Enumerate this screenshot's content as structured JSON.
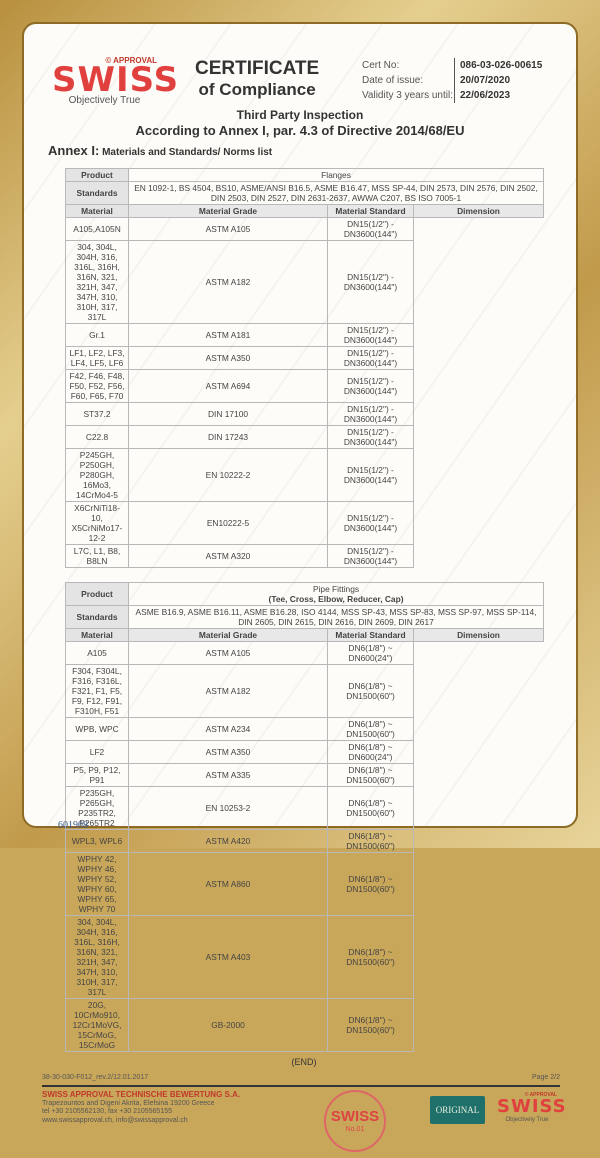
{
  "header": {
    "logo_approval": "© APPROVAL",
    "logo_brand": "SWISS",
    "logo_tagline": "Objectively True",
    "title_1": "CERTIFICATE",
    "title_2": "of Compliance",
    "cert_no_label": "Cert No:",
    "cert_no": "086-03-026-00615",
    "date_label": "Date of issue:",
    "date": "20/07/2020",
    "validity_label": "Validity 3 years until:",
    "validity": "22/06/2023",
    "subtitle_1": "Third Party Inspection",
    "subtitle_2": "According to Annex I, par. 4.3 of Directive 2014/68/EU"
  },
  "annex": {
    "prefix": "Annex I:",
    "text": " Materials and Standards/ Norms list"
  },
  "labels": {
    "product": "Product",
    "standards": "Standards",
    "material": "Material",
    "grade": "Material Grade",
    "standard": "Material Standard",
    "dimension": "Dimension"
  },
  "flanges": {
    "product": "Flanges",
    "standards": "EN 1092-1, BS 4504, BS10, ASME/ANSI B16.5, ASME B16.47, MSS SP-44, DIN 2573, DIN 2576, DIN 2502, DIN 2503, DIN 2527, DIN 2631-2637, AWWA C207, BS ISO 7005-1",
    "rows": [
      [
        "A105,A105N",
        "ASTM A105",
        "DN15(1/2\") - DN3600(144\")"
      ],
      [
        "304, 304L, 304H, 316, 316L, 316H, 316N, 321, 321H, 347, 347H, 310, 310H, 317, 317L",
        "ASTM A182",
        "DN15(1/2\") - DN3600(144\")"
      ],
      [
        "Gr.1",
        "ASTM A181",
        "DN15(1/2\") - DN3600(144\")"
      ],
      [
        "LF1, LF2, LF3, LF4, LF5, LF6",
        "ASTM A350",
        "DN15(1/2\") - DN3600(144\")"
      ],
      [
        "F42, F46, F48, F50, F52, F56, F60, F65, F70",
        "ASTM A694",
        "DN15(1/2\") - DN3600(144\")"
      ],
      [
        "ST37.2",
        "DIN 17100",
        "DN15(1/2\") - DN3600(144\")"
      ],
      [
        "C22.8",
        "DIN 17243",
        "DN15(1/2\") - DN3600(144\")"
      ],
      [
        "P245GH, P250GH, P280GH, 16Mo3, 14CrMo4-5",
        "EN 10222-2",
        "DN15(1/2\") - DN3600(144\")"
      ],
      [
        "X6CrNiTi18-10, X5CrNiMo17-12-2",
        "EN10222-5",
        "DN15(1/2\") - DN3600(144\")"
      ],
      [
        "L7C, L1, B8, B8LN",
        "ASTM A320",
        "DN15(1/2\") - DN3600(144\")"
      ]
    ]
  },
  "fittings": {
    "product": "Pipe Fittings",
    "product_sub": "(Tee, Cross, Elbow, Reducer, Cap)",
    "standards": "ASME B16.9, ASME B16.11, ASME B16.28, ISO 4144, MSS SP-43, MSS SP-83, MSS SP-97, MSS SP-114, DIN 2605, DIN 2615, DIN 2616, DIN 2609, DIN 2617",
    "rows": [
      [
        "A105",
        "ASTM A105",
        "DN6(1/8\") ~ DN600(24\")"
      ],
      [
        "F304, F304L, F316, F316L, F321, F1, F5, F9, F12, F91, F310H, F51",
        "ASTM A182",
        "DN6(1/8\") ~ DN1500(60\")"
      ],
      [
        "WPB, WPC",
        "ASTM A234",
        "DN6(1/8\") ~ DN1500(60\")"
      ],
      [
        "LF2",
        "ASTM A350",
        "DN6(1/8\") ~ DN600(24\")"
      ],
      [
        "P5, P9, P12, P91",
        "ASTM A335",
        "DN6(1/8\") ~ DN1500(60\")"
      ],
      [
        "P235GH, P265GH, P235TR2, P265TR2",
        "EN 10253-2",
        "DN6(1/8\") ~ DN1500(60\")"
      ],
      [
        "WPL3, WPL6",
        "ASTM A420",
        "DN6(1/8\") ~ DN1500(60\")"
      ],
      [
        "WPHY 42, WPHY 46, WPHY 52, WPHY 60, WPHY 65, WPHY 70",
        "ASTM A860",
        "DN6(1/8\") ~ DN1500(60\")"
      ],
      [
        "304, 304L, 304H, 316, 316L, 316H, 316N, 321, 321H, 347, 347H, 310, 310H, 317, 317L",
        "ASTM A403",
        "DN6(1/8\") ~ DN1500(60\")"
      ],
      [
        "20G, 10CrMo910, 12Cr1MoVG, 15CrMoG, 15CrMoG",
        "GB-2000",
        "DN6(1/8\") ~ DN1500(60\")"
      ]
    ]
  },
  "stamp": {
    "brand": "SWISS",
    "number": "No.01"
  },
  "end": "(END)",
  "footer": {
    "form": "38-30-030-F012_rev.2/12.01.2017",
    "page": "Page 2/2",
    "company": "SWISS APPROVAL TECHNISCHE BEWERTUNG S.A.",
    "address": "Trapezountos and Digeni Akrita, Elefsina 19200 Greece",
    "phone": "tel +30 2105562130, fax +30 2105565155",
    "web": "www.swissapproval.ch, info@swissapproval.ch",
    "original_badge": "ORIGINAL",
    "serial": "601908"
  }
}
